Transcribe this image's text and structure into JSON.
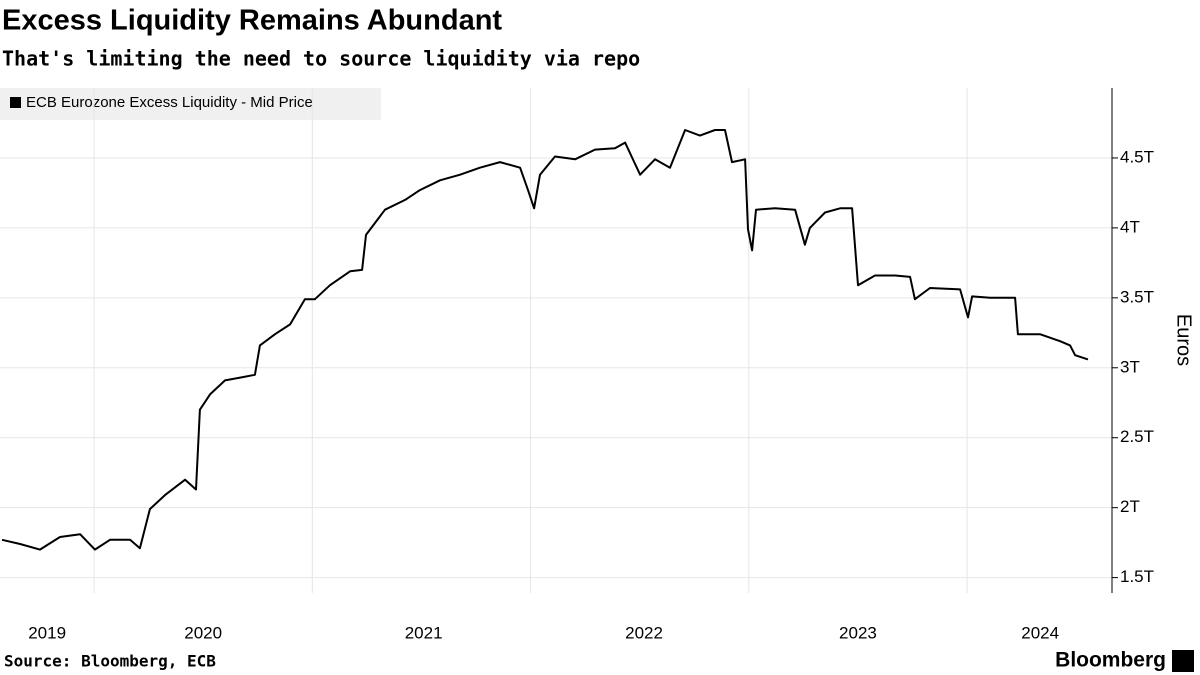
{
  "chart_data": {
    "type": "line",
    "title": "Excess Liquidity Remains Abundant",
    "subtitle": "That's limiting the need to source liquidity via repo",
    "y_axis_label": "Euros",
    "source": "Source: Bloomberg, ECB",
    "logo": "Bloomberg",
    "legend": "top-left",
    "grid": true,
    "x": [
      2019.578,
      2019.661,
      2019.752,
      2019.844,
      2019.936,
      2020.004,
      2020.073,
      2020.165,
      2020.21,
      2020.256,
      2020.325,
      2020.417,
      2020.467,
      2020.485,
      2020.531,
      2020.6,
      2020.669,
      2020.737,
      2020.76,
      2020.829,
      2020.898,
      2020.966,
      2021.012,
      2021.081,
      2021.173,
      2021.228,
      2021.246,
      2021.333,
      2021.425,
      2021.493,
      2021.585,
      2021.677,
      2021.768,
      2021.86,
      2021.952,
      2021.988,
      2022.016,
      2022.043,
      2022.112,
      2022.204,
      2022.295,
      2022.387,
      2022.433,
      2022.502,
      2022.57,
      2022.639,
      2022.708,
      2022.776,
      2022.845,
      2022.891,
      2022.923,
      2022.983,
      2022.996,
      2023.015,
      2023.033,
      2023.12,
      2023.212,
      2023.257,
      2023.28,
      2023.349,
      2023.418,
      2023.473,
      2023.5,
      2023.578,
      2023.67,
      2023.739,
      2023.761,
      2023.83,
      2023.968,
      2024.004,
      2024.023,
      2024.105,
      2024.22,
      2024.233,
      2024.334,
      2024.426,
      2024.472,
      2024.495,
      2024.554
    ],
    "series": [
      {
        "name": "ECB Eurozone Excess Liquidity - Mid Price",
        "color": "#000000",
        "values": [
          1.77,
          1.74,
          1.7,
          1.79,
          1.81,
          1.7,
          1.77,
          1.77,
          1.71,
          1.99,
          2.09,
          2.2,
          2.13,
          2.7,
          2.81,
          2.91,
          2.93,
          2.95,
          3.16,
          3.24,
          3.31,
          3.49,
          3.49,
          3.59,
          3.69,
          3.7,
          3.95,
          4.13,
          4.2,
          4.27,
          4.34,
          4.38,
          4.43,
          4.47,
          4.43,
          4.27,
          4.14,
          4.38,
          4.51,
          4.49,
          4.56,
          4.57,
          4.61,
          4.38,
          4.49,
          4.43,
          4.7,
          4.66,
          4.7,
          4.7,
          4.47,
          4.49,
          3.99,
          3.84,
          4.13,
          4.14,
          4.13,
          3.88,
          4.0,
          4.11,
          4.14,
          4.14,
          3.59,
          3.66,
          3.66,
          3.65,
          3.49,
          3.57,
          3.56,
          3.36,
          3.51,
          3.5,
          3.5,
          3.24,
          3.24,
          3.19,
          3.16,
          3.09,
          3.06
        ]
      }
    ],
    "xlim": [
      2019.569,
      2024.664
    ],
    "xticks": [
      {
        "value": 2019.785,
        "label": "2019"
      },
      {
        "value": 2020.5,
        "label": "2020"
      },
      {
        "value": 2021.51,
        "label": "2021"
      },
      {
        "value": 2022.52,
        "label": "2022"
      },
      {
        "value": 2023.5,
        "label": "2023"
      },
      {
        "value": 2024.335,
        "label": "2024"
      }
    ],
    "xgrid": [
      2020,
      2021,
      2022,
      2023,
      2024
    ],
    "ylim": [
      1.39,
      5.0
    ],
    "yticks": [
      {
        "value": 1.5,
        "label": "1.5T"
      },
      {
        "value": 2,
        "label": "2T"
      },
      {
        "value": 2.5,
        "label": "2.5T"
      },
      {
        "value": 3,
        "label": "3T"
      },
      {
        "value": 3.5,
        "label": "3.5T"
      },
      {
        "value": 4,
        "label": "4T"
      },
      {
        "value": 4.5,
        "label": "4.5T"
      }
    ]
  }
}
